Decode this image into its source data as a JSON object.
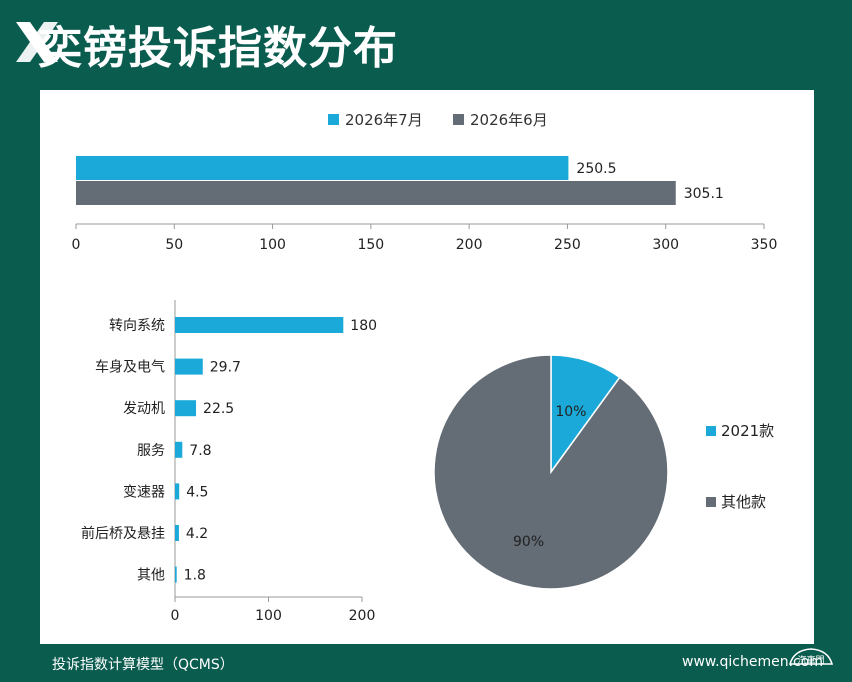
{
  "page": {
    "title": "奕镑投诉指数分布",
    "footer_left": "投诉指数计算模型（QCMS）",
    "footer_right": "www.qichemen.com",
    "brand_mark": "汽車門",
    "colors": {
      "background": "#0a5c4f",
      "series_july": "#1aa9d8",
      "series_june": "#646c76",
      "panel": "#ffffff"
    }
  },
  "chart_data": [
    {
      "type": "bar",
      "orientation": "horizontal",
      "categories": [
        ""
      ],
      "series": [
        {
          "name": "2026年7月",
          "values": [
            250.5
          ],
          "color": "#1aa9d8"
        },
        {
          "name": "2026年6月",
          "values": [
            305.1
          ],
          "color": "#646c76"
        }
      ],
      "xlim": [
        0,
        350
      ],
      "xticks": [
        0,
        50,
        100,
        150,
        200,
        250,
        300,
        350
      ],
      "data_labels": [
        "250.5",
        "305.1"
      ],
      "legend_position": "top",
      "grid": false
    },
    {
      "type": "bar",
      "orientation": "horizontal",
      "categories": [
        "转向系统",
        "车身及电气",
        "发动机",
        "服务",
        "变速器",
        "前后桥及悬挂",
        "其他"
      ],
      "values": [
        180,
        29.7,
        22.5,
        7.8,
        4.5,
        4.2,
        1.8
      ],
      "data_labels": [
        "180",
        "29.7",
        "22.5",
        "7.8",
        "4.5",
        "4.2",
        "1.8"
      ],
      "color": "#1aa9d8",
      "xlim": [
        0,
        200
      ],
      "xticks": [
        0,
        100,
        200
      ],
      "grid": false
    },
    {
      "type": "pie",
      "labels": [
        "2021款",
        "其他款"
      ],
      "values": [
        10,
        90
      ],
      "data_labels": [
        "10%",
        "90%"
      ],
      "colors": [
        "#1aa9d8",
        "#646c76"
      ],
      "legend_position": "right"
    }
  ]
}
